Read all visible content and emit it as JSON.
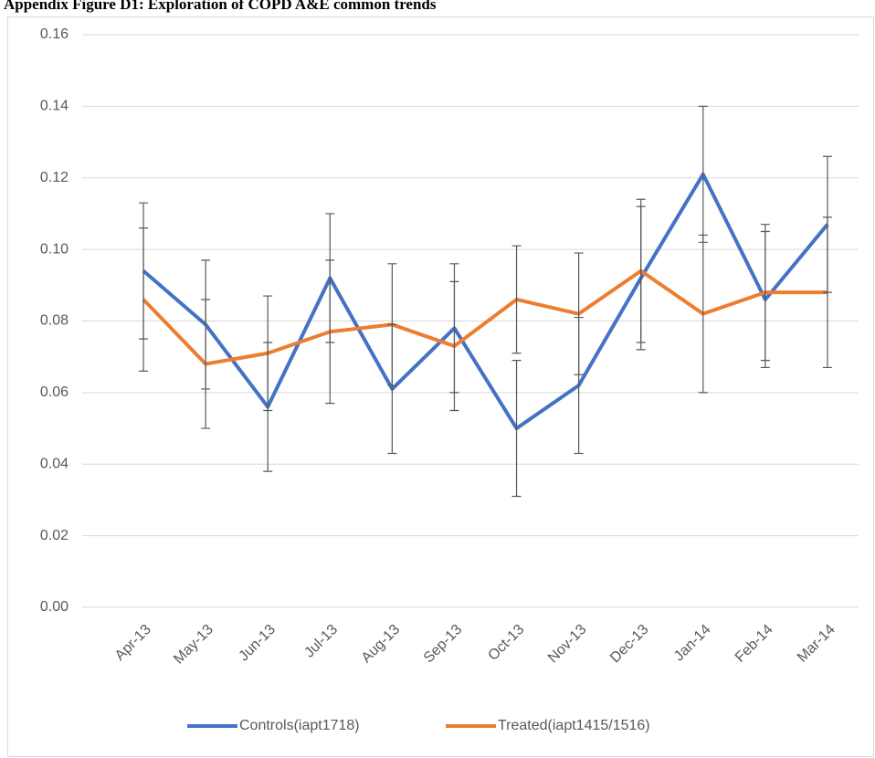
{
  "chart_data": {
    "type": "line",
    "title": "Appendix Figure D1: Exploration of COPD A&E common trends",
    "categories": [
      "Apr-13",
      "May-13",
      "Jun-13",
      "Jul-13",
      "Aug-13",
      "Sep-13",
      "Oct-13",
      "Nov-13",
      "Dec-13",
      "Jan-14",
      "Feb-14",
      "Mar-14"
    ],
    "series": [
      {
        "name": "Controls(iapt1718)",
        "color": "#4472c4",
        "values": [
          0.094,
          0.079,
          0.056,
          0.092,
          0.061,
          0.078,
          0.05,
          0.062,
          0.092,
          0.121,
          0.086,
          0.107
        ],
        "errors": [
          0.019,
          0.018,
          0.018,
          0.018,
          0.018,
          0.018,
          0.019,
          0.019,
          0.02,
          0.019,
          0.019,
          0.019
        ]
      },
      {
        "name": "Treated(iapt1415/1516)",
        "color": "#ed7d31",
        "values": [
          0.086,
          0.068,
          0.071,
          0.077,
          0.079,
          0.073,
          0.086,
          0.082,
          0.094,
          0.082,
          0.088,
          0.088
        ],
        "errors": [
          0.02,
          0.018,
          0.016,
          0.02,
          0.017,
          0.018,
          0.015,
          0.017,
          0.02,
          0.022,
          0.019,
          0.021
        ]
      }
    ],
    "error_bar_color": "#595959",
    "ylim": [
      0,
      0.16
    ],
    "yticks": [
      {
        "value": 0,
        "label": "0.00"
      },
      {
        "value": 0.02,
        "label": "0.02"
      },
      {
        "value": 0.04,
        "label": "0.04"
      },
      {
        "value": 0.06,
        "label": "0.06"
      },
      {
        "value": 0.08,
        "label": "0.08"
      },
      {
        "value": 0.1,
        "label": "0.10"
      },
      {
        "value": 0.12,
        "label": "0.12"
      },
      {
        "value": 0.14,
        "label": "0.14"
      },
      {
        "value": 0.16,
        "label": "0.16"
      }
    ],
    "grid": true,
    "legend": "bottom"
  }
}
